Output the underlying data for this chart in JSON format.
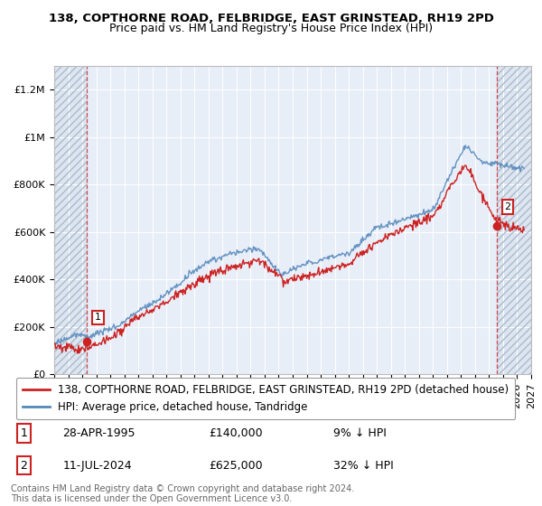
{
  "title": "138, COPTHORNE ROAD, FELBRIDGE, EAST GRINSTEAD, RH19 2PD",
  "subtitle": "Price paid vs. HM Land Registry's House Price Index (HPI)",
  "ylim": [
    0,
    1300000
  ],
  "xlim_start": 1993,
  "xlim_end": 2027,
  "yticks": [
    0,
    200000,
    400000,
    600000,
    800000,
    1000000,
    1200000
  ],
  "ytick_labels": [
    "£0",
    "£200K",
    "£400K",
    "£600K",
    "£800K",
    "£1M",
    "£1.2M"
  ],
  "hpi_color": "#5588bb",
  "price_color": "#cc2222",
  "hatch_color": "#dde5f0",
  "background_color": "#e8eef8",
  "sale1_x": 1995.32,
  "sale1_y": 140000,
  "sale1_label": "1",
  "sale2_x": 2024.53,
  "sale2_y": 625000,
  "sale2_label": "2",
  "vline1_x": 1995.32,
  "vline2_x": 2024.53,
  "legend_line1": "138, COPTHORNE ROAD, FELBRIDGE, EAST GRINSTEAD, RH19 2PD (detached house)",
  "legend_line2": "HPI: Average price, detached house, Tandridge",
  "annotation1_date": "28-APR-1995",
  "annotation1_price": "£140,000",
  "annotation1_hpi": "9% ↓ HPI",
  "annotation2_date": "11-JUL-2024",
  "annotation2_price": "£625,000",
  "annotation2_hpi": "32% ↓ HPI",
  "footer": "Contains HM Land Registry data © Crown copyright and database right 2024.\nThis data is licensed under the Open Government Licence v3.0.",
  "title_fontsize": 9.5,
  "subtitle_fontsize": 9,
  "tick_fontsize": 8,
  "legend_fontsize": 8.5,
  "annotation_fontsize": 9
}
